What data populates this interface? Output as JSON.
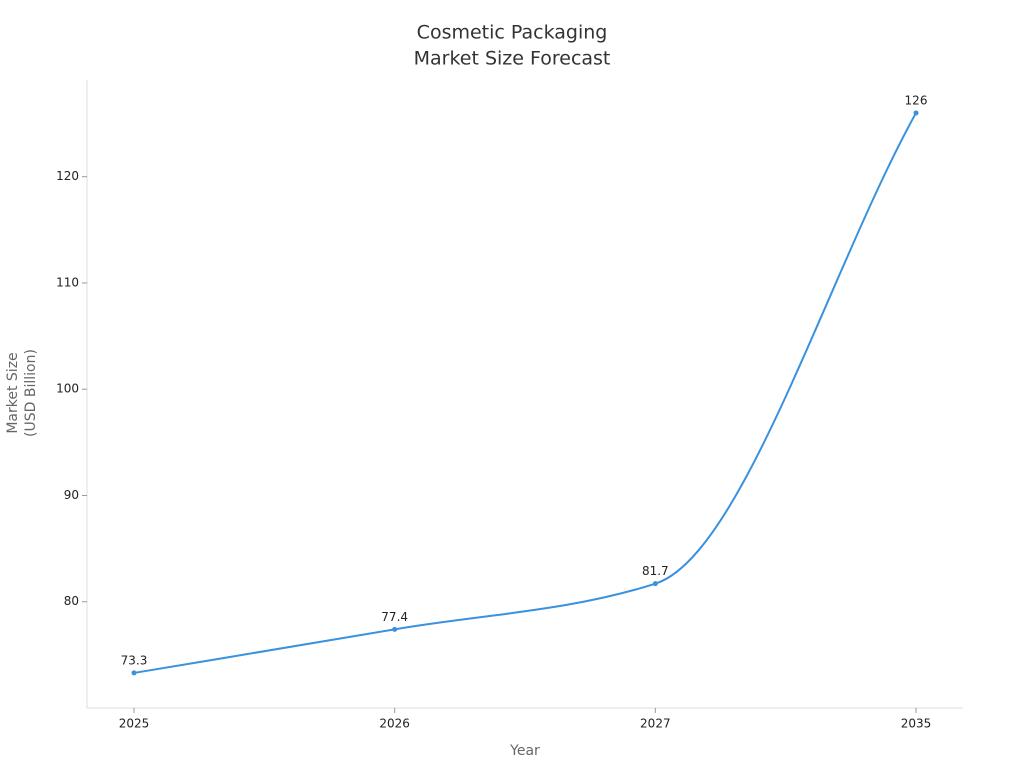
{
  "chart_data": {
    "type": "line",
    "title": [
      "Cosmetic Packaging",
      "Market Size Forecast"
    ],
    "x_label": "Year",
    "y_label": [
      "Market Size",
      "(USD Billion)"
    ],
    "categories": [
      "2025",
      "2026",
      "2027",
      "2035"
    ],
    "series": [
      {
        "name": "Market Size",
        "color": "#3a91dd",
        "values": [
          73.3,
          77.4,
          81.7,
          126
        ]
      }
    ],
    "ylim": [
      70,
      129.1
    ],
    "yticks": [
      80,
      90,
      100,
      110,
      120
    ],
    "smooth": true,
    "data_labels": true
  }
}
